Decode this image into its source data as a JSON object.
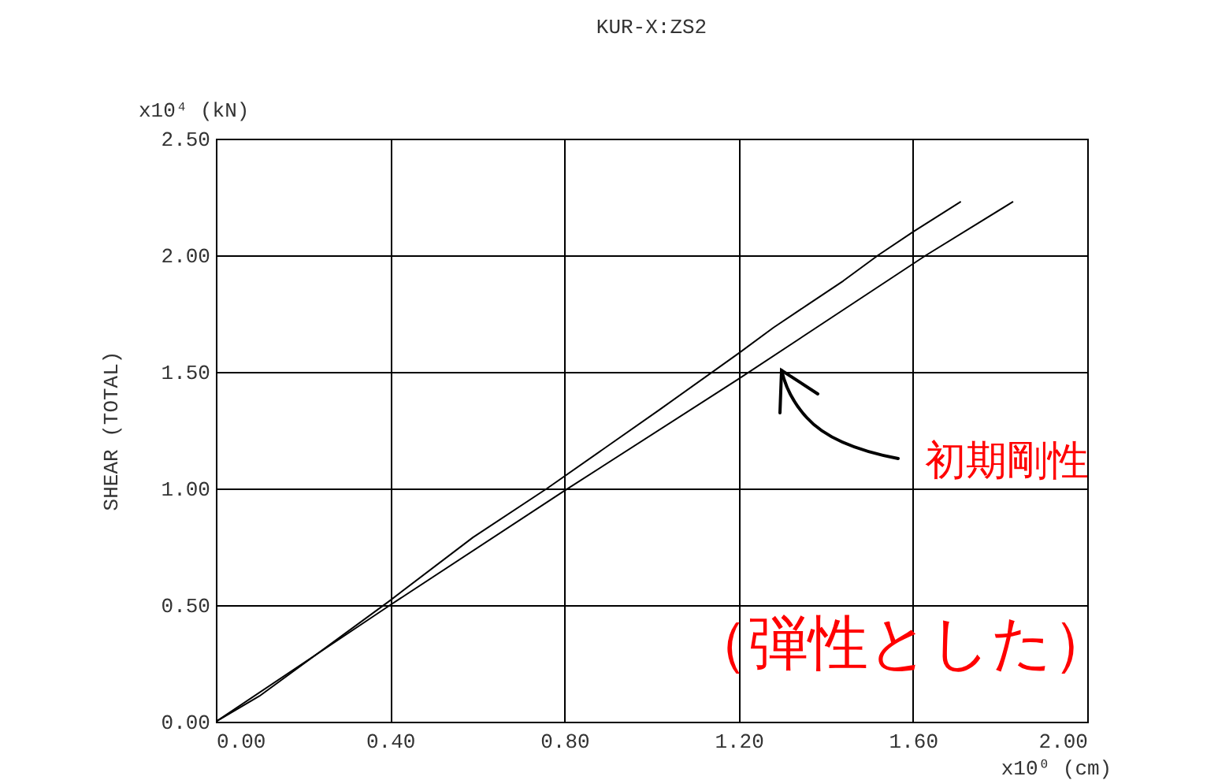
{
  "chart_data": {
    "type": "line",
    "title": "KUR-X:ZS2",
    "xlabel": "x10⁰ (cm)",
    "ylabel": "SHEAR (TOTAL)",
    "annotations": [
      "x10⁴ (kN)",
      "初期剛性",
      "（弾性とした）"
    ],
    "series": [
      {
        "color": "#000000",
        "x": [
          0,
          0.1,
          0.4,
          0.59,
          0.76,
          1.02,
          1.2,
          1.28,
          1.36,
          1.44,
          1.52,
          1.6,
          1.71
        ],
        "values": [
          0,
          0.11,
          0.52,
          0.79,
          1.0,
          1.34,
          1.58,
          1.69,
          1.79,
          1.89,
          2.0,
          2.1,
          2.23
        ]
      },
      {
        "color": "#000000",
        "x": [
          0,
          0.4,
          0.8,
          1.2,
          1.63,
          1.83
        ],
        "values": [
          0,
          0.5,
          0.99,
          1.47,
          2.0,
          2.23
        ]
      }
    ],
    "xlim": [
      0,
      2
    ],
    "ylim": [
      0,
      2.5
    ],
    "xticks": [
      {
        "value": 0,
        "label": "0.00"
      },
      {
        "value": 0.4,
        "label": "0.40"
      },
      {
        "value": 0.8,
        "label": "0.80"
      },
      {
        "value": 1.2,
        "label": "1.20"
      },
      {
        "value": 1.6,
        "label": "1.60"
      },
      {
        "value": 2,
        "label": "2.00"
      }
    ],
    "yticks": [
      {
        "value": 0,
        "label": "0.00"
      },
      {
        "value": 0.5,
        "label": "0.50"
      },
      {
        "value": 1,
        "label": "1.00"
      },
      {
        "value": 1.5,
        "label": "1.50"
      },
      {
        "value": 2,
        "label": "2.00"
      },
      {
        "value": 2.5,
        "label": "2.50"
      }
    ],
    "grid": true,
    "legend": false,
    "line_style": "solid"
  }
}
